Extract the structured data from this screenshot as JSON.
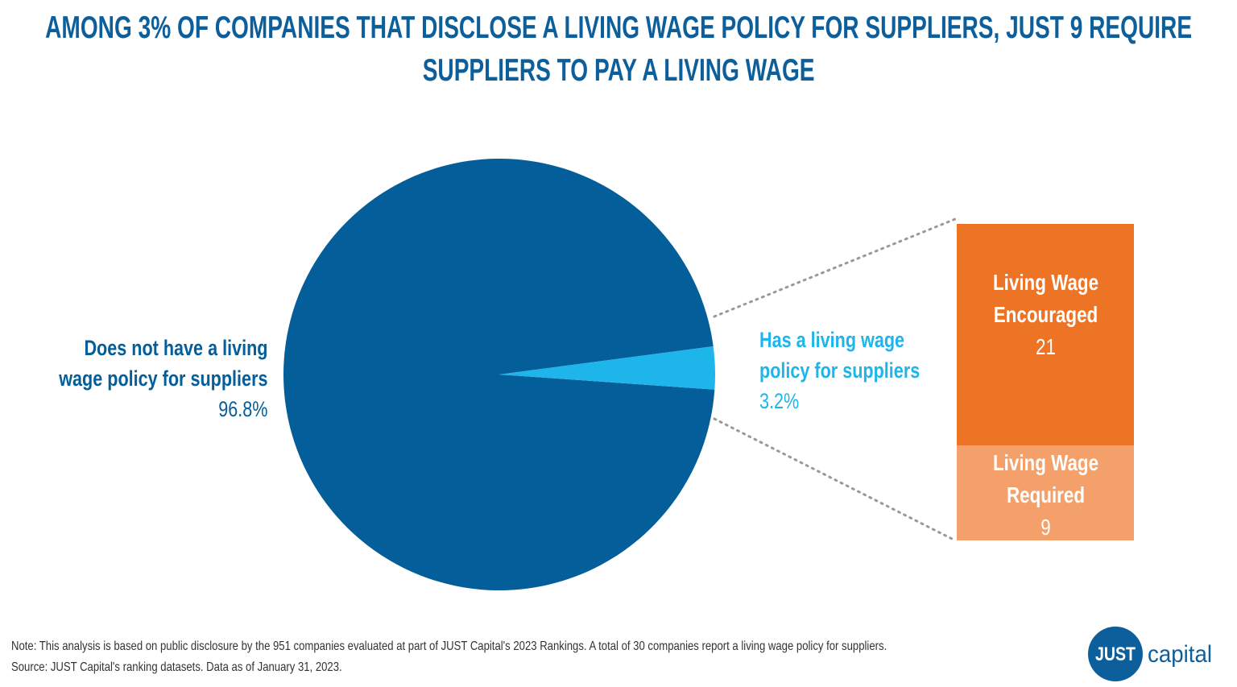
{
  "chart_data": [
    {
      "type": "pie",
      "title": "AMONG 3% OF COMPANIES THAT DISCLOSE A LIVING WAGE POLICY FOR SUPPLIERS, JUST 9 REQUIRE SUPPLIERS TO PAY A LIVING WAGE",
      "categories": [
        "Does not have a living wage policy for suppliers",
        "Has a living wage policy for suppliers"
      ],
      "values": [
        96.8,
        3.2
      ],
      "value_labels": [
        "96.8%",
        "3.2%"
      ],
      "colors": [
        "#045e99",
        "#1db5ea"
      ]
    },
    {
      "type": "bar",
      "stacked": true,
      "categories": [
        "Living Wage Encouraged",
        "Living Wage Required"
      ],
      "values": [
        21,
        9
      ],
      "colors": [
        "#ee7425",
        "#f3a06a"
      ]
    }
  ],
  "note": "Note: This analysis is based on public disclosure by the 951 companies evaluated at part of JUST Capital's 2023 Rankings. A total of 30 companies report a living wage policy for suppliers.",
  "source": "Source: JUST Capital's ranking datasets. Data as of January 31, 2023.",
  "logo": {
    "mark": "JUST",
    "text": "capital"
  }
}
